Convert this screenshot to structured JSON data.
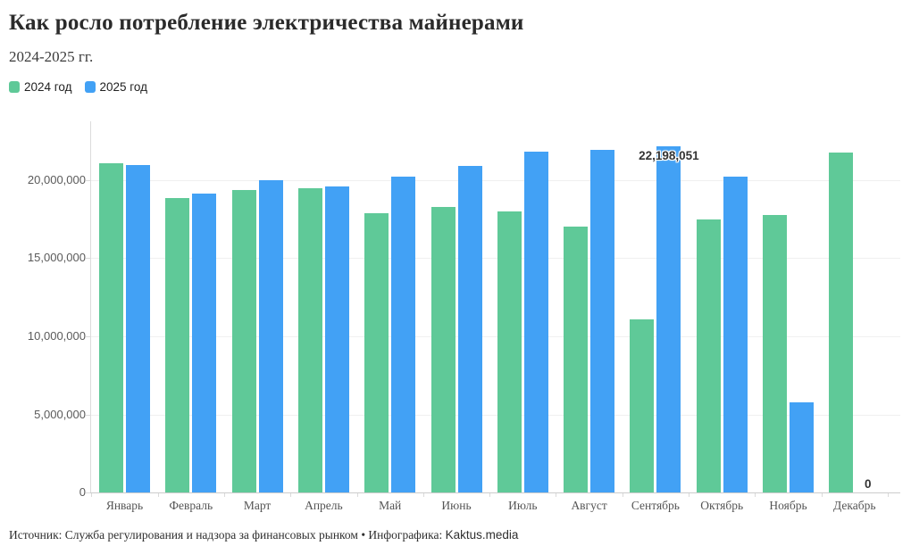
{
  "header": {
    "title": "Как росло потребление электричества майнерами",
    "subtitle": "2024-2025 гг."
  },
  "legend": [
    {
      "label": "2024 год",
      "color": "#5fc998"
    },
    {
      "label": "2025 год",
      "color": "#42a1f5"
    }
  ],
  "footer": {
    "source_prefix": "Источник: Служба регулирования и надзора за финансовых рынком • Инфографика: ",
    "brand": "Kaktus.media"
  },
  "chart_data": {
    "type": "bar",
    "title": "Как росло потребление электричества майнерами",
    "subtitle": "2024-2025 гг.",
    "categories": [
      "Январь",
      "Февраль",
      "Март",
      "Апрель",
      "Май",
      "Июнь",
      "Июль",
      "Август",
      "Сентябрь",
      "Октябрь",
      "Ноябрь",
      "Декабрь"
    ],
    "series": [
      {
        "name": "2024 год",
        "color": "#5fc998",
        "values": [
          21100000,
          18850000,
          19400000,
          19500000,
          17900000,
          18300000,
          18000000,
          17000000,
          11100000,
          17500000,
          17750000,
          21750000
        ]
      },
      {
        "name": "2025 год",
        "color": "#42a1f5",
        "values": [
          21000000,
          19150000,
          20000000,
          19600000,
          20250000,
          20900000,
          21850000,
          21950000,
          22198051,
          20250000,
          5750000,
          0
        ]
      }
    ],
    "ylim": [
      0,
      22500000
    ],
    "yticks": [
      0,
      5000000,
      10000000,
      15000000,
      20000000
    ],
    "ytick_labels": [
      "0",
      "5,000,000",
      "10,000,000",
      "15,000,000",
      "20,000,000"
    ],
    "xlabel": "",
    "ylabel": "",
    "grid": true,
    "legend_position": "top-left",
    "annotations": [
      {
        "text": "22,198,051",
        "series": "2025 год",
        "category": "Сентябрь"
      },
      {
        "text": "0",
        "series": "2025 год",
        "category": "Декабрь"
      }
    ]
  }
}
